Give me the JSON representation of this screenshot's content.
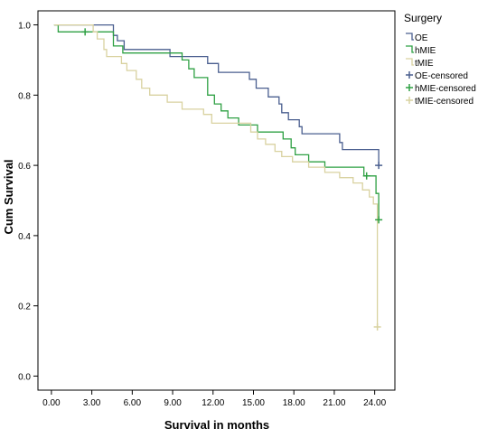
{
  "chart_data": {
    "type": "line",
    "step": true,
    "xlabel": "Survival in months",
    "ylabel": "Cum Survival",
    "xlim": [
      -1,
      25.5
    ],
    "ylim": [
      -0.04,
      1.04
    ],
    "x_ticks": [
      0,
      3,
      6,
      9,
      12,
      15,
      18,
      21,
      24
    ],
    "x_tick_labels": [
      "0.00",
      "3.00",
      "6.00",
      "9.00",
      "12.00",
      "15.00",
      "18.00",
      "21.00",
      "24.00"
    ],
    "y_ticks": [
      0.0,
      0.2,
      0.4,
      0.6,
      0.8,
      1.0
    ],
    "y_tick_labels": [
      "0.0",
      "0.2",
      "0.4",
      "0.6",
      "0.8",
      "1.0"
    ],
    "grid": false,
    "legend": {
      "title": "Surgery",
      "placement": "right",
      "entries": [
        "OE",
        "hMIE",
        "tMIE",
        "OE-censored",
        "hMIE-censored",
        "tMIE-censored"
      ]
    },
    "series": [
      {
        "name": "OE",
        "color": "#4a5f8f",
        "points": [
          [
            0.2,
            1.0
          ],
          [
            4.6,
            1.0
          ],
          [
            4.6,
            0.97
          ],
          [
            4.9,
            0.97
          ],
          [
            4.9,
            0.955
          ],
          [
            5.4,
            0.955
          ],
          [
            5.4,
            0.93
          ],
          [
            8.8,
            0.93
          ],
          [
            8.8,
            0.91
          ],
          [
            11.6,
            0.91
          ],
          [
            11.6,
            0.89
          ],
          [
            12.4,
            0.89
          ],
          [
            12.4,
            0.865
          ],
          [
            14.7,
            0.865
          ],
          [
            14.7,
            0.845
          ],
          [
            15.2,
            0.845
          ],
          [
            15.2,
            0.82
          ],
          [
            16.1,
            0.82
          ],
          [
            16.1,
            0.795
          ],
          [
            16.9,
            0.795
          ],
          [
            16.9,
            0.775
          ],
          [
            17.1,
            0.775
          ],
          [
            17.1,
            0.75
          ],
          [
            17.6,
            0.75
          ],
          [
            17.6,
            0.73
          ],
          [
            18.4,
            0.73
          ],
          [
            18.4,
            0.71
          ],
          [
            18.6,
            0.71
          ],
          [
            18.6,
            0.69
          ],
          [
            21.4,
            0.69
          ],
          [
            21.4,
            0.665
          ],
          [
            21.6,
            0.665
          ],
          [
            21.6,
            0.645
          ],
          [
            24.3,
            0.645
          ],
          [
            24.3,
            0.6
          ]
        ]
      },
      {
        "name": "hMIE",
        "color": "#2ea043",
        "points": [
          [
            0.2,
            1.0
          ],
          [
            0.5,
            1.0
          ],
          [
            0.5,
            0.98
          ],
          [
            4.6,
            0.98
          ],
          [
            4.6,
            0.94
          ],
          [
            5.3,
            0.94
          ],
          [
            5.3,
            0.92
          ],
          [
            9.7,
            0.92
          ],
          [
            9.7,
            0.9
          ],
          [
            10.2,
            0.9
          ],
          [
            10.2,
            0.875
          ],
          [
            10.6,
            0.875
          ],
          [
            10.6,
            0.85
          ],
          [
            11.6,
            0.85
          ],
          [
            11.6,
            0.8
          ],
          [
            12.1,
            0.8
          ],
          [
            12.1,
            0.775
          ],
          [
            12.6,
            0.775
          ],
          [
            12.6,
            0.755
          ],
          [
            13.1,
            0.755
          ],
          [
            13.1,
            0.735
          ],
          [
            13.9,
            0.735
          ],
          [
            13.9,
            0.715
          ],
          [
            15.3,
            0.715
          ],
          [
            15.3,
            0.695
          ],
          [
            17.2,
            0.695
          ],
          [
            17.2,
            0.675
          ],
          [
            17.8,
            0.675
          ],
          [
            17.8,
            0.65
          ],
          [
            18.1,
            0.65
          ],
          [
            18.1,
            0.63
          ],
          [
            19.1,
            0.63
          ],
          [
            19.1,
            0.61
          ],
          [
            20.3,
            0.61
          ],
          [
            20.3,
            0.595
          ],
          [
            23.2,
            0.595
          ],
          [
            23.2,
            0.57
          ],
          [
            24.1,
            0.57
          ],
          [
            24.1,
            0.52
          ],
          [
            24.3,
            0.52
          ],
          [
            24.3,
            0.445
          ]
        ]
      },
      {
        "name": "tMIE",
        "color": "#d9d2a0",
        "points": [
          [
            0.2,
            1.0
          ],
          [
            3.1,
            1.0
          ],
          [
            3.1,
            0.98
          ],
          [
            3.4,
            0.98
          ],
          [
            3.4,
            0.96
          ],
          [
            3.9,
            0.96
          ],
          [
            3.9,
            0.93
          ],
          [
            4.1,
            0.93
          ],
          [
            4.1,
            0.91
          ],
          [
            5.2,
            0.91
          ],
          [
            5.2,
            0.89
          ],
          [
            5.6,
            0.89
          ],
          [
            5.6,
            0.87
          ],
          [
            6.3,
            0.87
          ],
          [
            6.3,
            0.845
          ],
          [
            6.7,
            0.845
          ],
          [
            6.7,
            0.82
          ],
          [
            7.3,
            0.82
          ],
          [
            7.3,
            0.8
          ],
          [
            8.6,
            0.8
          ],
          [
            8.6,
            0.78
          ],
          [
            9.7,
            0.78
          ],
          [
            9.7,
            0.76
          ],
          [
            11.3,
            0.76
          ],
          [
            11.3,
            0.745
          ],
          [
            11.9,
            0.745
          ],
          [
            11.9,
            0.72
          ],
          [
            14.8,
            0.72
          ],
          [
            14.8,
            0.695
          ],
          [
            15.3,
            0.695
          ],
          [
            15.3,
            0.675
          ],
          [
            15.9,
            0.675
          ],
          [
            15.9,
            0.66
          ],
          [
            16.6,
            0.66
          ],
          [
            16.6,
            0.64
          ],
          [
            17.1,
            0.64
          ],
          [
            17.1,
            0.625
          ],
          [
            17.9,
            0.625
          ],
          [
            17.9,
            0.61
          ],
          [
            19.1,
            0.61
          ],
          [
            19.1,
            0.595
          ],
          [
            20.3,
            0.595
          ],
          [
            20.3,
            0.58
          ],
          [
            21.4,
            0.58
          ],
          [
            21.4,
            0.565
          ],
          [
            22.4,
            0.565
          ],
          [
            22.4,
            0.55
          ],
          [
            23.1,
            0.55
          ],
          [
            23.1,
            0.53
          ],
          [
            23.6,
            0.53
          ],
          [
            23.6,
            0.51
          ],
          [
            23.9,
            0.51
          ],
          [
            23.9,
            0.49
          ],
          [
            24.2,
            0.49
          ],
          [
            24.2,
            0.14
          ]
        ]
      }
    ],
    "censored": [
      {
        "name": "OE-censored",
        "color": "#4a5f8f",
        "points": [
          [
            24.3,
            0.6
          ]
        ]
      },
      {
        "name": "hMIE-censored",
        "color": "#2ea043",
        "points": [
          [
            2.5,
            0.98
          ],
          [
            23.4,
            0.57
          ],
          [
            24.3,
            0.445
          ]
        ]
      },
      {
        "name": "tMIE-censored",
        "color": "#d9d2a0",
        "points": [
          [
            24.2,
            0.14
          ]
        ]
      }
    ]
  }
}
